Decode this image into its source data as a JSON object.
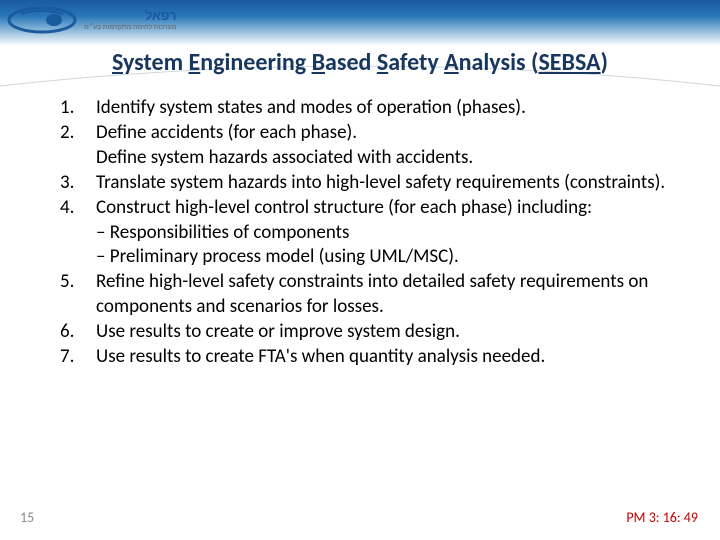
{
  "logo": {
    "brand_he": "רפאל",
    "swoosh_color": "#1a5a9e"
  },
  "title": {
    "parts": [
      {
        "text": "S",
        "u": true
      },
      {
        "text": "ystem "
      },
      {
        "text": "E",
        "u": true
      },
      {
        "text": "ngineering  "
      },
      {
        "text": "B",
        "u": true
      },
      {
        "text": "ased "
      },
      {
        "text": "S",
        "u": true
      },
      {
        "text": "afety "
      },
      {
        "text": "A",
        "u": true
      },
      {
        "text": "nalysis ("
      },
      {
        "text": "SEBSA",
        "u": true
      },
      {
        "text": ")"
      }
    ],
    "color": "#17375e",
    "fontsize": 24
  },
  "steps": [
    {
      "lines": [
        "Identify system states and modes of operation (phases)."
      ]
    },
    {
      "lines": [
        "Define accidents (for each phase).",
        "Define system hazards associated with accidents."
      ]
    },
    {
      "lines": [
        "Translate system hazards into high-level safety requirements (constraints)."
      ]
    },
    {
      "lines": [
        "Construct high-level control structure (for each phase) including:",
        "– Responsibilities of components",
        "– Preliminary process model (using UML/MSC)."
      ]
    },
    {
      "lines": [
        "Refine high-level safety constraints into detailed safety requirements on components and scenarios for losses."
      ]
    },
    {
      "lines": [
        "Use results to create or improve system design."
      ]
    },
    {
      "lines": [
        "Use results to create FTA's when quantity analysis needed."
      ]
    }
  ],
  "footer": {
    "page": "15",
    "time": "PM 3: 16: 49",
    "time_color": "#c00000",
    "page_color": "#8a8a8a"
  },
  "content_style": {
    "fontsize": 19,
    "line_height": 1.28,
    "text_color": "#000000"
  },
  "arc_color": "#d0d6dc",
  "background": "#ffffff"
}
